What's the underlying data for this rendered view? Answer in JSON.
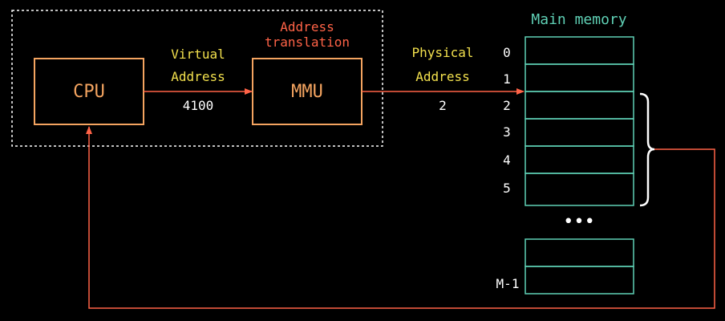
{
  "colors": {
    "background": "#000000",
    "box_orange": "#f4a460",
    "arrow_red": "#ff6347",
    "label_yellow": "#f2e04d",
    "memory_teal": "#5fd0b5",
    "text_white": "#ffffff",
    "dashed_border": "#ffffff"
  },
  "cpu": {
    "label": "CPU"
  },
  "mmu": {
    "label": "MMU",
    "title_line1": "Address",
    "title_line2": "translation"
  },
  "virtual_address": {
    "line1": "Virtual",
    "line2": "Address",
    "value": "4100"
  },
  "physical_address": {
    "line1": "Physical",
    "line2": "Address",
    "value": "2"
  },
  "memory": {
    "title": "Main memory",
    "rows": [
      "0",
      "1",
      "2",
      "3",
      "4",
      "5"
    ],
    "ellipsis": "•••",
    "last_label": "M-1"
  }
}
